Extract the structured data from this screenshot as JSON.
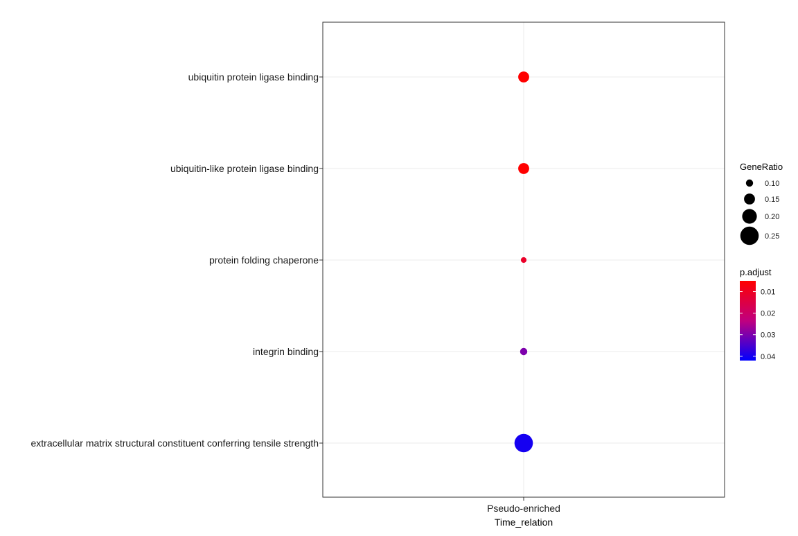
{
  "chart_data": {
    "type": "scatter",
    "title": "",
    "xlabel": "Time_relation",
    "ylabel": "",
    "x_categories": [
      "Pseudo-enriched"
    ],
    "y_categories": [
      "ubiquitin protein ligase binding",
      "ubiquitin-like protein ligase binding",
      "protein folding chaperone",
      "integrin binding",
      "extracellular matrix structural constituent conferring tensile strength"
    ],
    "points": [
      {
        "x": "Pseudo-enriched",
        "y": "ubiquitin protein ligase binding",
        "gene_ratio": 0.15,
        "p_adjust": 0.005
      },
      {
        "x": "Pseudo-enriched",
        "y": "ubiquitin-like protein ligase binding",
        "gene_ratio": 0.15,
        "p_adjust": 0.005
      },
      {
        "x": "Pseudo-enriched",
        "y": "protein folding chaperone",
        "gene_ratio": 0.08,
        "p_adjust": 0.011
      },
      {
        "x": "Pseudo-enriched",
        "y": "integrin binding",
        "gene_ratio": 0.1,
        "p_adjust": 0.03
      },
      {
        "x": "Pseudo-enriched",
        "y": "extracellular matrix structural constituent conferring tensile strength",
        "gene_ratio": 0.25,
        "p_adjust": 0.04
      }
    ],
    "grid": true,
    "legend_position": "right",
    "size_legend": {
      "title": "GeneRatio",
      "values": [
        0.1,
        0.15,
        0.2,
        0.25
      ],
      "labels": [
        "0.10",
        "0.15",
        "0.20",
        "0.25"
      ]
    },
    "color_legend": {
      "title": "p.adjust",
      "range": [
        0.005,
        0.042
      ],
      "ticks": [
        0.01,
        0.02,
        0.03,
        0.04
      ],
      "labels": [
        "0.01",
        "0.02",
        "0.03",
        "0.04"
      ],
      "low_color": "#ff0000",
      "high_color": "#0000ff"
    }
  }
}
